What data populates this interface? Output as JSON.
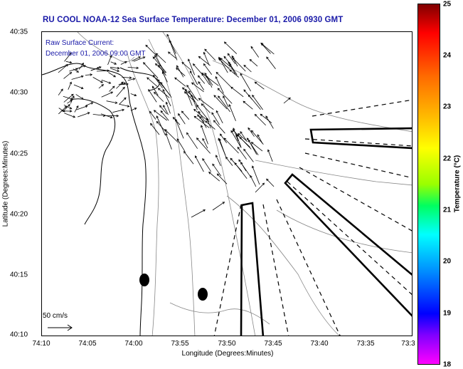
{
  "title": "RU COOL  NOAA-12  Sea Surface Temperature:  December 01, 2006 0930 GMT",
  "annotation": {
    "line1": "Raw Surface Current:",
    "line2": "December 01, 2006 09:00 GMT"
  },
  "scale_label": "50 cm/s",
  "colors": {
    "title": "#1a1aa8",
    "annotation": "#1a1aa8",
    "coastline": "#000000",
    "bathymetry": "#888888",
    "vectors": "#000000"
  },
  "chart_data": {
    "type": "map",
    "xlabel": "Longitude (Degrees:Minutes)",
    "ylabel": "Latitude (Degrees:Minutes)",
    "x_ticks": [
      "74:10",
      "74:05",
      "74:00",
      "73:55",
      "73:50",
      "73:45",
      "73:40",
      "73:35",
      "73:3"
    ],
    "y_ticks": [
      "40:35",
      "40:30",
      "40:25",
      "40:20",
      "40:15",
      "40:10"
    ],
    "colorbar": {
      "label": "Temperature (°C)",
      "ticks": [
        "25",
        "24",
        "23",
        "22",
        "21",
        "20",
        "19",
        "18"
      ],
      "range": [
        18,
        25
      ]
    }
  }
}
